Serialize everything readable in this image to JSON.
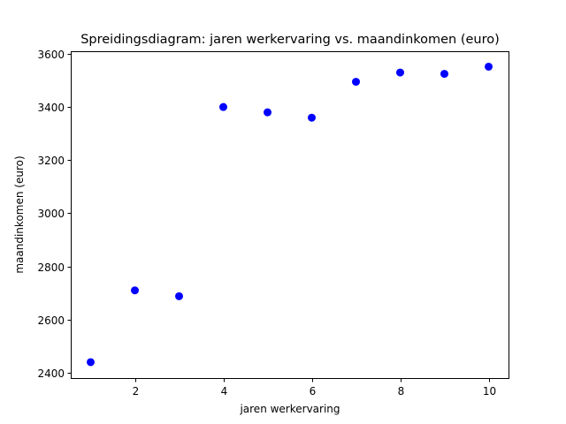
{
  "chart_data": {
    "type": "scatter",
    "title": "Spreidingsdiagram: jaren werkervaring vs. maandinkomen (euro)",
    "xlabel": "jaren werkervaring",
    "ylabel": "maandinkomen (euro)",
    "xlim": [
      0.55,
      10.45
    ],
    "ylim": [
      2380,
      3610
    ],
    "xticks": [
      2,
      4,
      6,
      8,
      10
    ],
    "yticks": [
      2400,
      2600,
      2800,
      3000,
      3200,
      3400,
      3600
    ],
    "grid": false,
    "marker_color": "#0000ff",
    "x": [
      1,
      2,
      3,
      4,
      5,
      6,
      7,
      8,
      9,
      10
    ],
    "y": [
      2440,
      2710,
      2688,
      3400,
      3380,
      3360,
      3495,
      3530,
      3525,
      3552
    ]
  }
}
